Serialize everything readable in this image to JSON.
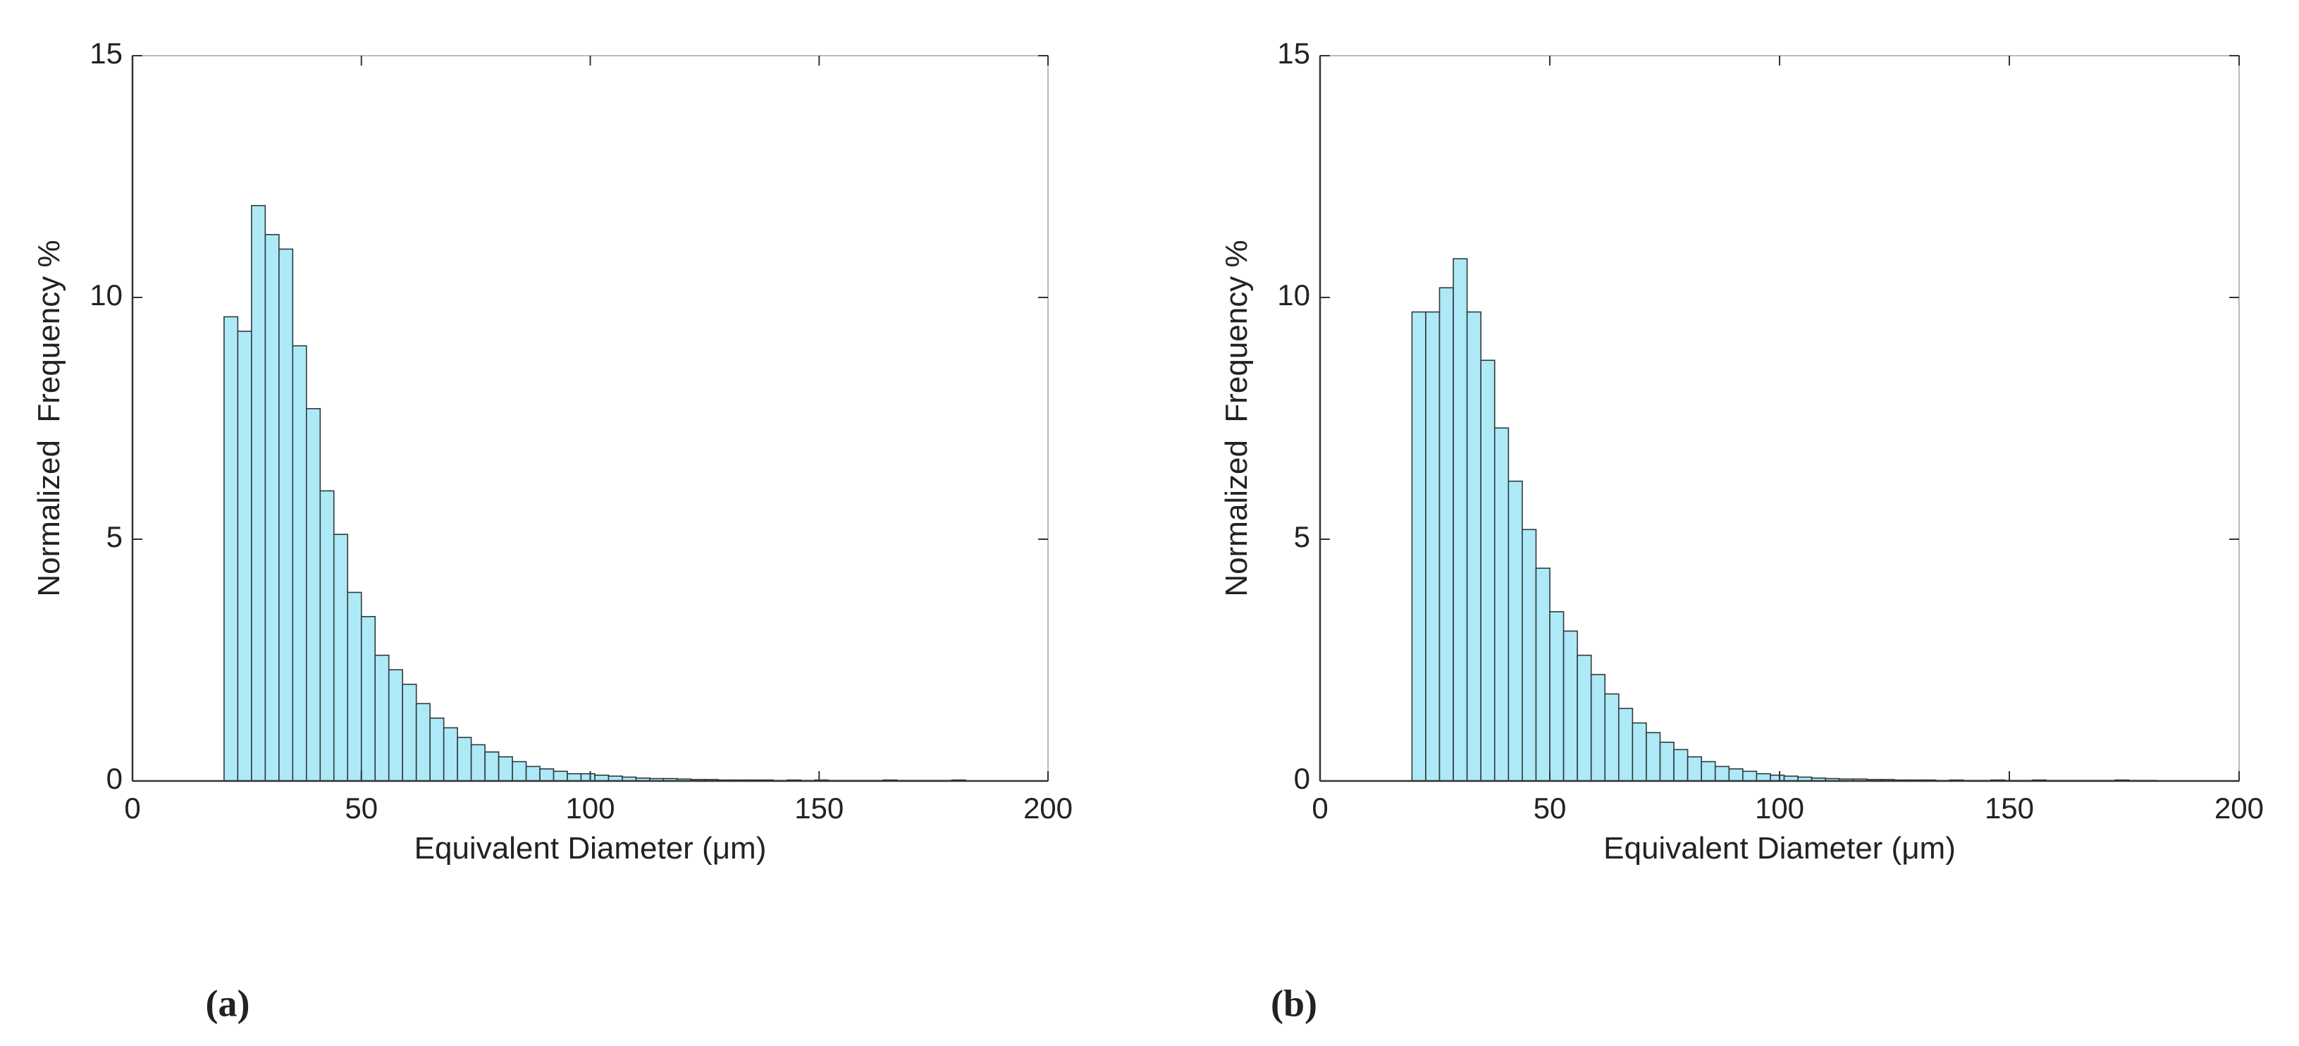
{
  "chart_data": [
    {
      "type": "histogram",
      "panel_label": "(a)",
      "x_label": "Equivalent Diameter (μm)",
      "y_label": "Normalized  Frequency %",
      "bins": [
        20,
        23,
        26,
        29,
        32,
        35,
        38,
        41,
        44,
        47,
        50,
        53,
        56,
        59,
        62,
        65,
        68,
        71,
        74,
        77,
        80,
        83,
        86,
        89,
        92,
        95,
        98,
        101,
        104,
        107,
        110,
        113,
        116,
        119,
        122,
        125,
        128,
        131,
        134,
        137,
        140,
        143,
        146,
        149,
        152,
        155,
        158,
        161,
        164,
        167,
        170,
        173,
        176,
        179,
        182
      ],
      "counts": [
        9.6,
        9.3,
        11.9,
        11.3,
        11.0,
        9.0,
        7.7,
        6.0,
        5.1,
        3.9,
        3.4,
        2.6,
        2.3,
        2.0,
        1.6,
        1.3,
        1.1,
        0.9,
        0.75,
        0.6,
        0.5,
        0.4,
        0.3,
        0.25,
        0.2,
        0.15,
        0.15,
        0.12,
        0.1,
        0.08,
        0.06,
        0.05,
        0.05,
        0.04,
        0.03,
        0.03,
        0.02,
        0.02,
        0.02,
        0.02,
        0.01,
        0.02,
        0.01,
        0.02,
        0.01,
        0.01,
        0.01,
        0.01,
        0.02,
        0.01,
        0.01,
        0.01,
        0.01,
        0.02
      ],
      "color": "#aee9f7",
      "edge_color": "#2f3a3d",
      "xlim": [
        0,
        200
      ],
      "ylim": [
        0,
        15
      ],
      "xticks": [
        0,
        50,
        100,
        150,
        200
      ],
      "yticks": [
        0,
        5,
        10,
        15
      ]
    },
    {
      "type": "histogram",
      "panel_label": "(b)",
      "x_label": "Equivalent Diameter (μm)",
      "y_label": "Normalized  Frequency %",
      "bins": [
        20,
        23,
        26,
        29,
        32,
        35,
        38,
        41,
        44,
        47,
        50,
        53,
        56,
        59,
        62,
        65,
        68,
        71,
        74,
        77,
        80,
        83,
        86,
        89,
        92,
        95,
        98,
        101,
        104,
        107,
        110,
        113,
        116,
        119,
        122,
        125,
        128,
        131,
        134,
        137,
        140,
        143,
        146,
        149,
        152,
        155,
        158,
        161,
        164,
        167,
        170,
        173,
        176,
        179,
        182
      ],
      "counts": [
        9.7,
        9.7,
        10.2,
        10.8,
        9.7,
        8.7,
        7.3,
        6.2,
        5.2,
        4.4,
        3.5,
        3.1,
        2.6,
        2.2,
        1.8,
        1.5,
        1.2,
        1.0,
        0.8,
        0.65,
        0.5,
        0.4,
        0.3,
        0.25,
        0.2,
        0.15,
        0.12,
        0.1,
        0.08,
        0.06,
        0.05,
        0.04,
        0.04,
        0.03,
        0.03,
        0.02,
        0.02,
        0.02,
        0.01,
        0.02,
        0.01,
        0.01,
        0.02,
        0.01,
        0.01,
        0.02,
        0.01,
        0.01,
        0.01,
        0.01,
        0.01,
        0.02,
        0.01,
        0.01
      ],
      "color": "#aee9f7",
      "edge_color": "#2f3a3d",
      "xlim": [
        0,
        200
      ],
      "ylim": [
        0,
        15
      ],
      "xticks": [
        0,
        50,
        100,
        150,
        200
      ],
      "yticks": [
        0,
        5,
        10,
        15
      ]
    }
  ]
}
